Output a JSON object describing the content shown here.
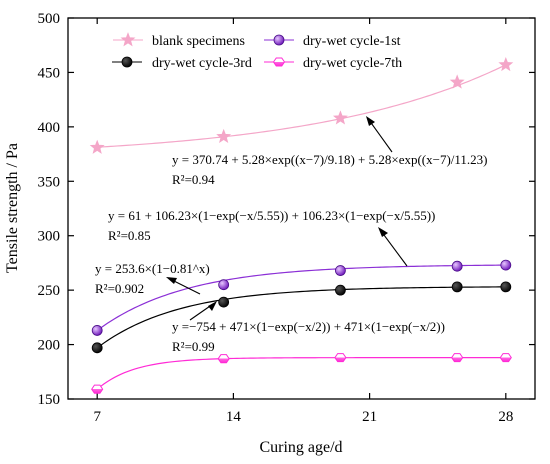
{
  "chart_data": {
    "type": "line",
    "xlabel": "Curing age/d",
    "ylabel": "Tensile strength / Pa",
    "xlim": [
      5.5,
      29.5
    ],
    "ylim": [
      150,
      500
    ],
    "xticks": [
      7,
      14,
      21,
      28
    ],
    "yticks": [
      150,
      200,
      250,
      300,
      350,
      400,
      450,
      500
    ],
    "grid": false,
    "legend_position": "top",
    "series": [
      {
        "name": "blank specimens",
        "color": "#f4a6c8",
        "marker": "star",
        "x": [
          7,
          13.5,
          19.5,
          25.5,
          28
        ],
        "y": [
          381,
          391,
          408,
          441,
          457
        ],
        "fit": "y = 370.74 + 5.28×exp((x−7)/9.18) + 5.28×exp((x−7)/11.23)"
      },
      {
        "name": "dry-wet cycle-1st",
        "color": "#8b2fd6",
        "marker": "circle",
        "x": [
          7,
          13.5,
          19.5,
          25.5,
          28
        ],
        "y": [
          213,
          255,
          268,
          272,
          273
        ],
        "fit": "y = 61 + 106.23×(1−exp(−x/5.55)) + 106.23×(1−exp(−x/5.55))"
      },
      {
        "name": "dry-wet cycle-3rd",
        "color": "#000000",
        "marker": "circle",
        "x": [
          7,
          13.5,
          19.5,
          25.5,
          28
        ],
        "y": [
          197,
          239,
          250,
          253,
          253
        ],
        "fit": "y = 253.6×(1−0.81^x)"
      },
      {
        "name": "dry-wet cycle-7th",
        "color": "#ff2bd6",
        "marker": "hexagon",
        "x": [
          7,
          13.5,
          19.5,
          25.5,
          28
        ],
        "y": [
          159,
          187,
          188,
          188,
          188
        ],
        "fit": "y =−754 + 471×(1−exp(−x/2)) + 471×(1−exp(−x/2))"
      }
    ],
    "annotations": [
      {
        "eq": "y = 370.74 + 5.28×exp((x−7)/9.18) + 5.28×exp((x−7)/11.23)",
        "r2": "R²=0.94"
      },
      {
        "eq": "y = 61 + 106.23×(1−exp(−x/5.55)) + 106.23×(1−exp(−x/5.55))",
        "r2": "R²=0.85"
      },
      {
        "eq": "y = 253.6×(1−0.81^x)",
        "r2": "R²=0.902"
      },
      {
        "eq": "y =−754 + 471×(1−exp(−x/2)) + 471×(1−exp(−x/2))",
        "r2": "R²=0.99"
      }
    ]
  }
}
